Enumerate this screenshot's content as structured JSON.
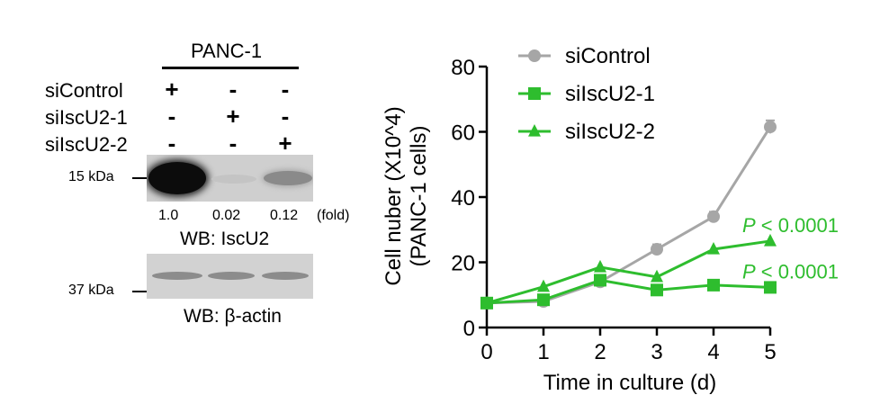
{
  "western_blot": {
    "cell_line": "PANC-1",
    "conditions": [
      {
        "name": "siControl",
        "signs": [
          "+",
          "-",
          "-"
        ]
      },
      {
        "name": "siIscU2-1",
        "signs": [
          "-",
          "+",
          "-"
        ]
      },
      {
        "name": "siIscU2-2",
        "signs": [
          "-",
          "-",
          "+"
        ]
      }
    ],
    "blot1": {
      "marker": "15 kDa",
      "fold_values": [
        "1.0",
        "0.02",
        "0.12"
      ],
      "fold_unit": "(fold)",
      "caption": "WB: IscU2"
    },
    "blot2": {
      "marker": "37 kDa",
      "caption": "WB: β-actin"
    },
    "colors": {
      "blot_bg": "#cfcfcf",
      "band": "#111111"
    }
  },
  "chart_data": {
    "type": "line",
    "xlabel": "Time in culture (d)",
    "ylabel_line1": "Cell nuber (X10^4)",
    "ylabel_line2": "(PANC-1 cells)",
    "x": [
      0,
      1,
      2,
      3,
      4,
      5
    ],
    "xlim": [
      0,
      5
    ],
    "ylim": [
      0,
      80
    ],
    "yticks": [
      0,
      20,
      40,
      60,
      80
    ],
    "grid": false,
    "legend_position": "top-left",
    "series": [
      {
        "name": "siControl",
        "marker": "circle",
        "color": "#a6a6a6",
        "values": [
          7.5,
          8,
          14,
          24,
          34,
          61.5
        ],
        "errors": [
          0.5,
          0.5,
          0.8,
          1.5,
          1.5,
          2
        ]
      },
      {
        "name": "siIscU2-1",
        "marker": "square",
        "color": "#2ebd2e",
        "values": [
          7.5,
          8.5,
          14.5,
          11.5,
          13,
          12.3
        ],
        "errors": [
          0,
          0,
          0,
          0,
          0,
          0
        ]
      },
      {
        "name": "siIscU2-2",
        "marker": "triangle",
        "color": "#2ebd2e",
        "values": [
          7.5,
          12.5,
          18.5,
          15.5,
          24,
          26.5
        ],
        "errors": [
          0,
          0,
          0,
          0,
          0,
          0
        ]
      }
    ],
    "annotations": [
      {
        "text": "P < 0.0001",
        "series": "siIscU2-2",
        "color": "#2ebd2e"
      },
      {
        "text": "P < 0.0001",
        "series": "siIscU2-1",
        "color": "#2ebd2e"
      }
    ]
  }
}
